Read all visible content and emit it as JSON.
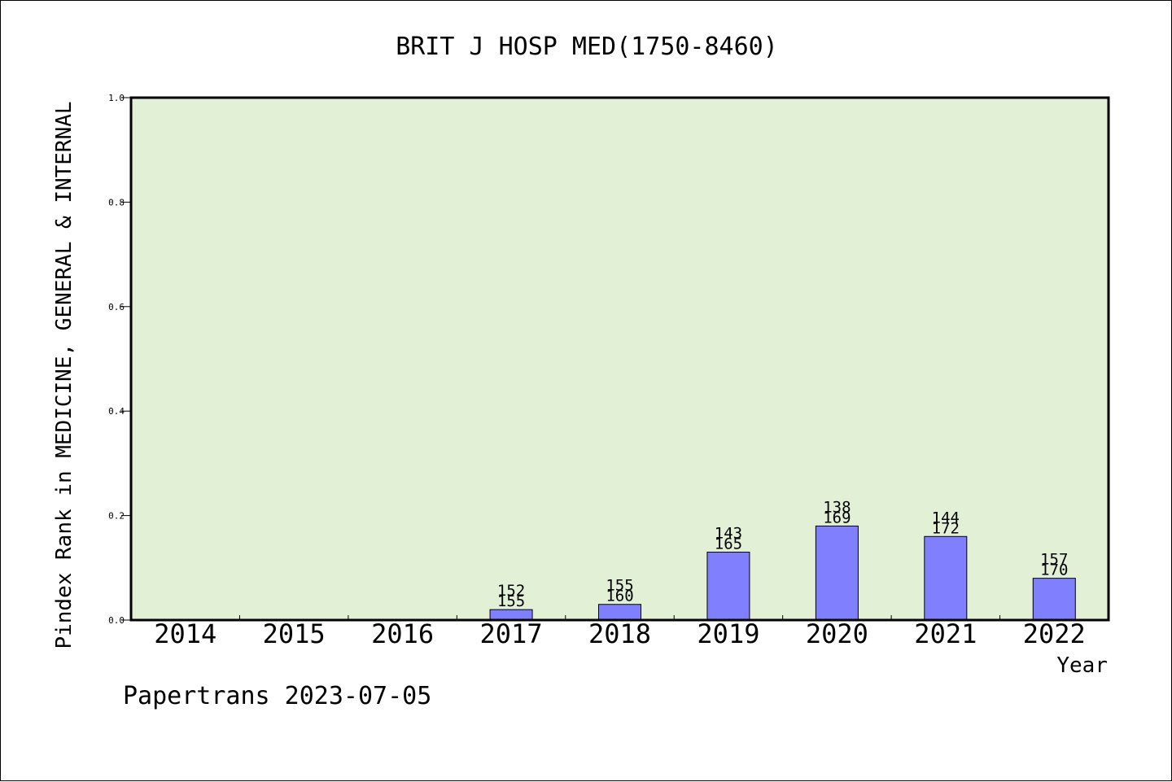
{
  "chart_data": {
    "type": "bar",
    "title": "BRIT J HOSP MED(1750-8460)",
    "xlabel": "Year",
    "ylabel": "Pindex Rank in MEDICINE, GENERAL & INTERNAL",
    "categories": [
      "2014",
      "2015",
      "2016",
      "2017",
      "2018",
      "2019",
      "2020",
      "2021",
      "2022"
    ],
    "series": [
      {
        "values": [
          null,
          null,
          null,
          0.02,
          0.03,
          0.13,
          0.18,
          0.16,
          0.08
        ]
      }
    ],
    "bar_labels": [
      null,
      null,
      null,
      [
        "152",
        "155"
      ],
      [
        "155",
        "160"
      ],
      [
        "143",
        "165"
      ],
      [
        "138",
        "169"
      ],
      [
        "144",
        "172"
      ],
      [
        "157",
        "170"
      ]
    ],
    "ylim": [
      0,
      1.0
    ],
    "yticks": [
      "0.0",
      "0.2",
      "0.4",
      "0.6",
      "0.8",
      "1.0"
    ],
    "grid": false,
    "colors": {
      "plot_bg": "#e2f0d6",
      "bar_fill": "#8080ff",
      "bar_stroke": "#000000"
    }
  },
  "footer": {
    "credit": "Papertrans 2023-07-05"
  }
}
